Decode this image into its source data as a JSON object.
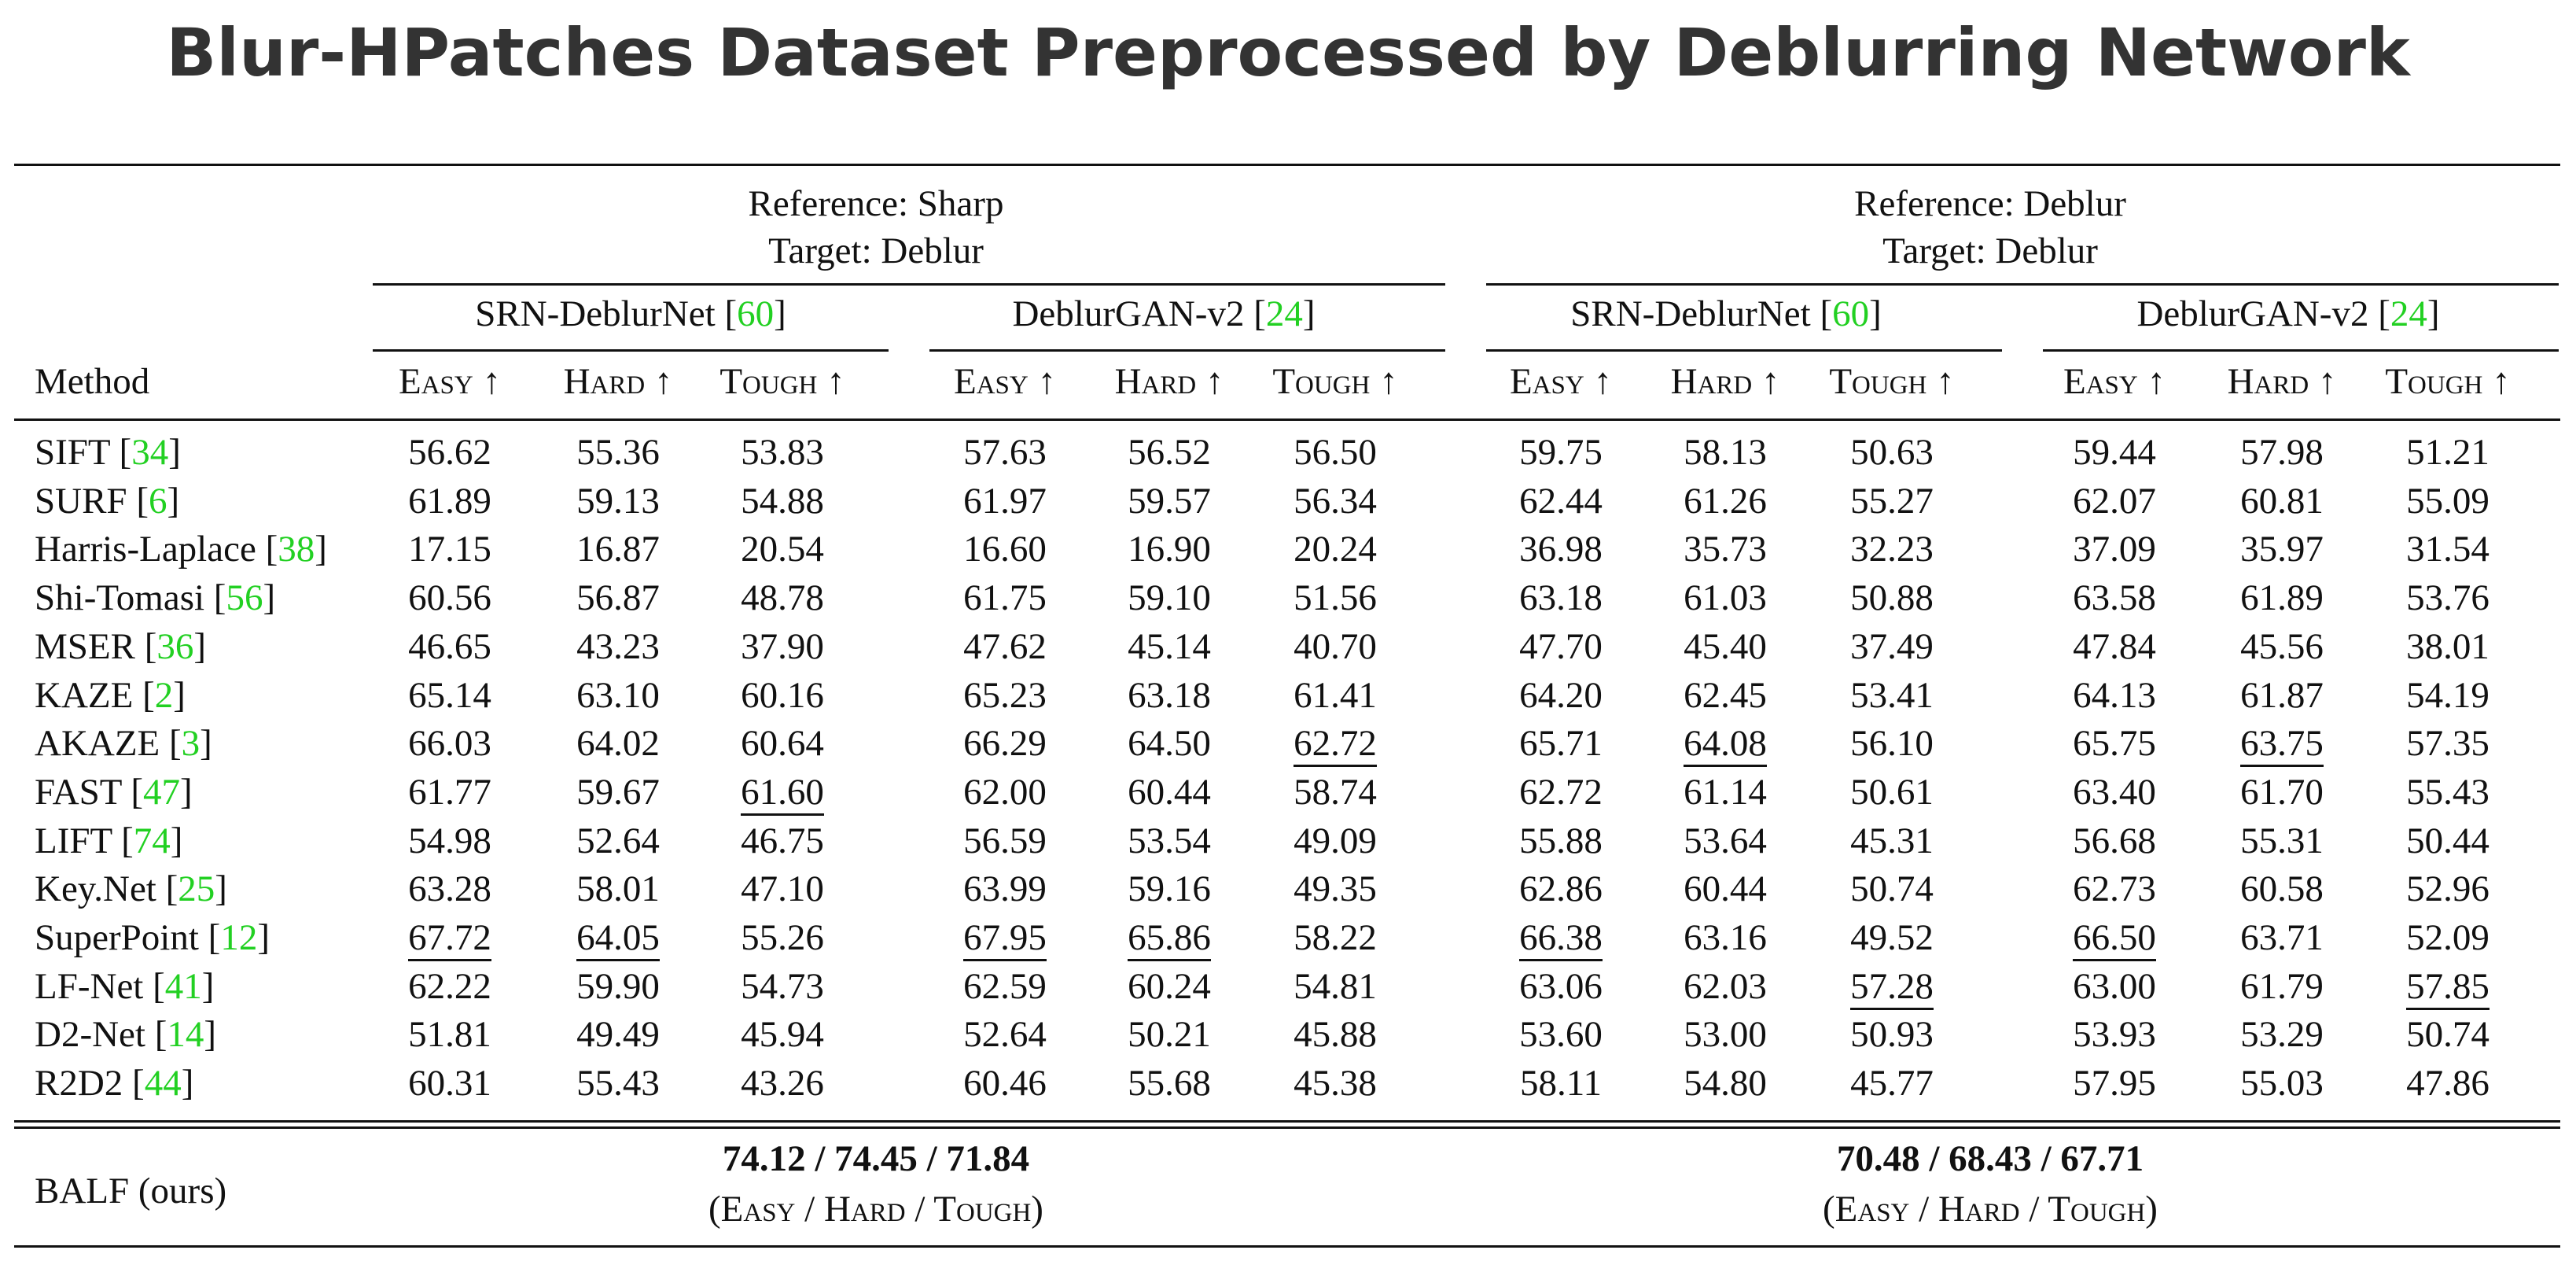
{
  "title": "Blur-HPatches Dataset Preprocessed by Deblurring Network",
  "groups": [
    {
      "ref": "Reference: Sharp",
      "tgt": "Target: Deblur"
    },
    {
      "ref": "Reference: Deblur",
      "tgt": "Target: Deblur"
    }
  ],
  "subgroups": [
    {
      "name": "SRN-DeblurNet",
      "cite": "60"
    },
    {
      "name": "DeblurGAN-v2",
      "cite": "24"
    },
    {
      "name": "SRN-DeblurNet",
      "cite": "60"
    },
    {
      "name": "DeblurGAN-v2",
      "cite": "24"
    }
  ],
  "method_header": "Method",
  "metric_headers": [
    "Easy ↑",
    "Hard ↑",
    "Tough ↑"
  ],
  "rows": [
    {
      "method": "SIFT",
      "cite": "34",
      "values": [
        "56.62",
        "55.36",
        "53.83",
        "57.63",
        "56.52",
        "56.50",
        "59.75",
        "58.13",
        "50.63",
        "59.44",
        "57.98",
        "51.21"
      ],
      "underline": []
    },
    {
      "method": "SURF",
      "cite": "6",
      "values": [
        "61.89",
        "59.13",
        "54.88",
        "61.97",
        "59.57",
        "56.34",
        "62.44",
        "61.26",
        "55.27",
        "62.07",
        "60.81",
        "55.09"
      ],
      "underline": []
    },
    {
      "method": "Harris-Laplace",
      "cite": "38",
      "values": [
        "17.15",
        "16.87",
        "20.54",
        "16.60",
        "16.90",
        "20.24",
        "36.98",
        "35.73",
        "32.23",
        "37.09",
        "35.97",
        "31.54"
      ],
      "underline": []
    },
    {
      "method": "Shi-Tomasi",
      "cite": "56",
      "values": [
        "60.56",
        "56.87",
        "48.78",
        "61.75",
        "59.10",
        "51.56",
        "63.18",
        "61.03",
        "50.88",
        "63.58",
        "61.89",
        "53.76"
      ],
      "underline": []
    },
    {
      "method": "MSER",
      "cite": "36",
      "values": [
        "46.65",
        "43.23",
        "37.90",
        "47.62",
        "45.14",
        "40.70",
        "47.70",
        "45.40",
        "37.49",
        "47.84",
        "45.56",
        "38.01"
      ],
      "underline": []
    },
    {
      "method": "KAZE",
      "cite": "2",
      "values": [
        "65.14",
        "63.10",
        "60.16",
        "65.23",
        "63.18",
        "61.41",
        "64.20",
        "62.45",
        "53.41",
        "64.13",
        "61.87",
        "54.19"
      ],
      "underline": []
    },
    {
      "method": "AKAZE",
      "cite": "3",
      "values": [
        "66.03",
        "64.02",
        "60.64",
        "66.29",
        "64.50",
        "62.72",
        "65.71",
        "64.08",
        "56.10",
        "65.75",
        "63.75",
        "57.35"
      ],
      "underline": [
        5,
        7,
        10
      ]
    },
    {
      "method": "FAST",
      "cite": "47",
      "values": [
        "61.77",
        "59.67",
        "61.60",
        "62.00",
        "60.44",
        "58.74",
        "62.72",
        "61.14",
        "50.61",
        "63.40",
        "61.70",
        "55.43"
      ],
      "underline": [
        2
      ]
    },
    {
      "method": "LIFT",
      "cite": "74",
      "values": [
        "54.98",
        "52.64",
        "46.75",
        "56.59",
        "53.54",
        "49.09",
        "55.88",
        "53.64",
        "45.31",
        "56.68",
        "55.31",
        "50.44"
      ],
      "underline": []
    },
    {
      "method": "Key.Net",
      "cite": "25",
      "values": [
        "63.28",
        "58.01",
        "47.10",
        "63.99",
        "59.16",
        "49.35",
        "62.86",
        "60.44",
        "50.74",
        "62.73",
        "60.58",
        "52.96"
      ],
      "underline": []
    },
    {
      "method": "SuperPoint",
      "cite": "12",
      "values": [
        "67.72",
        "64.05",
        "55.26",
        "67.95",
        "65.86",
        "58.22",
        "66.38",
        "63.16",
        "49.52",
        "66.50",
        "63.71",
        "52.09"
      ],
      "underline": [
        0,
        1,
        3,
        4,
        6,
        9
      ]
    },
    {
      "method": "LF-Net",
      "cite": "41",
      "values": [
        "62.22",
        "59.90",
        "54.73",
        "62.59",
        "60.24",
        "54.81",
        "63.06",
        "62.03",
        "57.28",
        "63.00",
        "61.79",
        "57.85"
      ],
      "underline": [
        8,
        11
      ]
    },
    {
      "method": "D2-Net",
      "cite": "14",
      "values": [
        "51.81",
        "49.49",
        "45.94",
        "52.64",
        "50.21",
        "45.88",
        "53.60",
        "53.00",
        "50.93",
        "53.93",
        "53.29",
        "50.74"
      ],
      "underline": []
    },
    {
      "method": "R2D2",
      "cite": "44",
      "values": [
        "60.31",
        "55.43",
        "43.26",
        "60.46",
        "55.68",
        "45.38",
        "58.11",
        "54.80",
        "45.77",
        "57.95",
        "55.03",
        "47.86"
      ],
      "underline": []
    }
  ],
  "balf": {
    "method": "BALF (ours)",
    "left_value": "74.12 / 74.45 / 71.84",
    "right_value": "70.48 / 68.43 / 67.71",
    "note": "(Easy / Hard / Tough)"
  }
}
